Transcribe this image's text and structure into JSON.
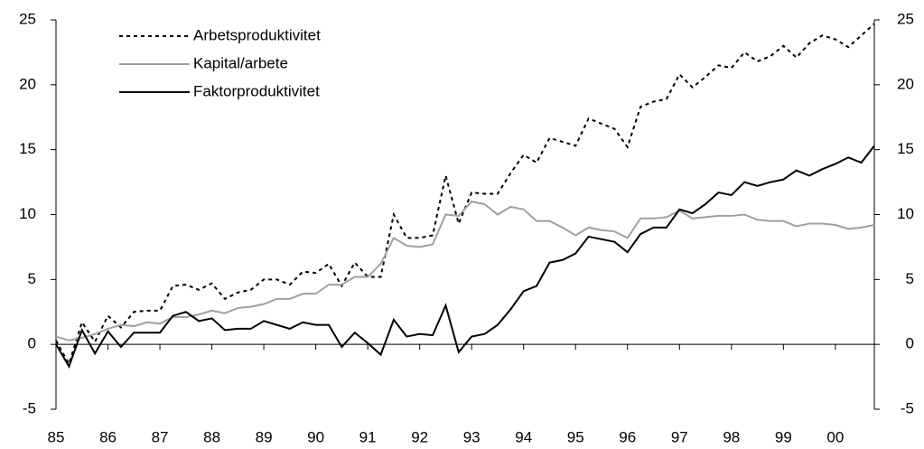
{
  "chart_data": {
    "type": "line",
    "categories": [
      "85",
      null,
      null,
      null,
      "86",
      null,
      null,
      null,
      "87",
      null,
      null,
      null,
      "88",
      null,
      null,
      null,
      "89",
      null,
      null,
      null,
      "90",
      null,
      null,
      null,
      "91",
      null,
      null,
      null,
      "92",
      null,
      null,
      null,
      "93",
      null,
      null,
      null,
      "94",
      null,
      null,
      null,
      "95",
      null,
      null,
      null,
      "96",
      null,
      null,
      null,
      "97",
      null,
      null,
      null,
      "98",
      null,
      null,
      null,
      "99",
      null,
      null,
      null,
      "00",
      null,
      null,
      null
    ],
    "series": [
      {
        "name": "Arbetsproduktivitet",
        "color": "#000000",
        "dash": true,
        "values": [
          0.3,
          -1.5,
          1.7,
          0.2,
          2.2,
          1.3,
          2.5,
          2.6,
          2.6,
          4.5,
          4.6,
          4.2,
          4.7,
          3.5,
          4.0,
          4.2,
          5.0,
          5.0,
          4.6,
          5.6,
          5.5,
          6.2,
          4.5,
          6.3,
          5.2,
          5.2,
          10.0,
          8.2,
          8.2,
          8.4,
          13.0,
          9.3,
          11.7,
          11.6,
          11.6,
          13.2,
          14.6,
          14.0,
          15.9,
          15.6,
          15.3,
          17.4,
          17.0,
          16.6,
          15.2,
          18.3,
          18.7,
          18.9,
          20.8,
          19.8,
          20.6,
          21.5,
          21.3,
          22.5,
          21.8,
          22.2,
          23.0,
          22.1,
          23.2,
          23.8,
          23.5,
          22.9,
          23.8,
          24.7
        ]
      },
      {
        "name": "Kapital/arbete",
        "color": "#a0a0a0",
        "dash": false,
        "values": [
          0.6,
          0.3,
          0.5,
          0.8,
          1.2,
          1.5,
          1.4,
          1.7,
          1.6,
          2.1,
          2.1,
          2.3,
          2.6,
          2.4,
          2.8,
          2.9,
          3.1,
          3.5,
          3.5,
          3.9,
          3.9,
          4.6,
          4.6,
          5.2,
          5.2,
          6.2,
          8.2,
          7.6,
          7.5,
          7.7,
          10.0,
          9.9,
          11.0,
          10.8,
          10.0,
          10.6,
          10.4,
          9.5,
          9.5,
          9.0,
          8.4,
          9.0,
          8.8,
          8.7,
          8.2,
          9.7,
          9.7,
          9.8,
          10.3,
          9.7,
          9.8,
          9.9,
          9.9,
          10.0,
          9.6,
          9.5,
          9.5,
          9.1,
          9.3,
          9.3,
          9.2,
          8.9,
          9.0,
          9.2
        ]
      },
      {
        "name": "Faktorproduktivitet",
        "color": "#000000",
        "dash": false,
        "values": [
          0,
          -1.7,
          1.1,
          -0.7,
          1.0,
          -0.2,
          0.9,
          0.9,
          0.9,
          2.2,
          2.5,
          1.8,
          2.0,
          1.1,
          1.2,
          1.2,
          1.8,
          1.5,
          1.2,
          1.7,
          1.5,
          1.5,
          -0.2,
          0.9,
          0.1,
          -0.8,
          1.9,
          0.6,
          0.8,
          0.7,
          3.0,
          -0.6,
          0.6,
          0.8,
          1.5,
          2.7,
          4.1,
          4.5,
          6.3,
          6.5,
          7.0,
          8.3,
          8.1,
          7.9,
          7.1,
          8.5,
          9.0,
          9.0,
          10.4,
          10.1,
          10.8,
          11.7,
          11.5,
          12.5,
          12.2,
          12.5,
          12.7,
          13.4,
          13.0,
          13.5,
          13.9,
          14.4,
          14.0,
          15.3
        ]
      }
    ],
    "ylim": [
      -5,
      25
    ],
    "yticks": [
      -5,
      0,
      5,
      10,
      15,
      20,
      25
    ],
    "y2lim": [
      -5,
      25
    ],
    "y2ticks": [
      -5,
      0,
      5,
      10,
      15,
      20,
      25
    ],
    "legend": "upper left"
  }
}
